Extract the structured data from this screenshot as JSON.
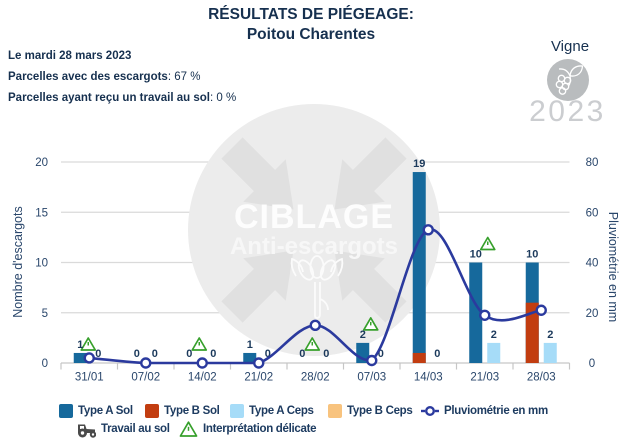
{
  "title": {
    "line1": "RÉSULTATS DE PIÉGEAGE:",
    "line2": "Poitou Charentes"
  },
  "info": {
    "date": "Le mardi 28 mars 2023",
    "line2_label": "Parcelles avec des escargots",
    "line2_value": ": 67 %",
    "line3_label": "Parcelles ayant reçu un travail au sol",
    "line3_value": ": 0 %"
  },
  "context": {
    "crop": "Vigne",
    "year": "2023"
  },
  "watermark": {
    "line1": "CIBLAGE",
    "line2": "Anti-escargots"
  },
  "chart_data": {
    "type": "bar+line",
    "categories": [
      "31/01",
      "07/02",
      "14/02",
      "21/02",
      "28/02",
      "07/03",
      "14/03",
      "21/03",
      "28/03"
    ],
    "bar_series": [
      {
        "name": "Type A Sol",
        "slot": "sol",
        "color": "#16699c",
        "values": [
          1,
          0,
          0,
          1,
          0,
          2,
          19,
          10,
          10
        ]
      },
      {
        "name": "Type B Sol",
        "slot": "sol",
        "color": "#c23d10",
        "values": [
          0,
          0,
          0,
          0,
          0,
          0,
          1,
          0,
          6
        ]
      },
      {
        "name": "Type A Ceps",
        "slot": "ceps",
        "color": "#a6dcf8",
        "values": [
          0,
          0,
          0,
          0,
          0,
          0,
          0,
          2,
          2
        ]
      },
      {
        "name": "Type B Ceps",
        "slot": "ceps",
        "color": "#f8c37e",
        "values": [
          0,
          0,
          0,
          0,
          0,
          0,
          0,
          0,
          0
        ]
      }
    ],
    "line_series": {
      "name": "Pluviométrie en mm",
      "color": "#2b3a9e",
      "values": [
        2,
        0,
        0,
        0,
        15,
        1,
        53,
        19,
        21
      ]
    },
    "value_labels": {
      "sol": [
        "1",
        "0",
        "0",
        "1",
        "0",
        "2",
        "19",
        "10",
        "10"
      ],
      "ceps": [
        "0",
        "0",
        "0",
        "0",
        "0",
        "0",
        "0",
        "2",
        "2"
      ]
    },
    "delicate_interpretation": [
      true,
      false,
      true,
      false,
      true,
      true,
      false,
      true,
      false
    ],
    "y_left": {
      "title": "Nombre d'escargots",
      "ticks": [
        0,
        5,
        10,
        15,
        20
      ],
      "max": 20
    },
    "y_right": {
      "title": "Pluviométrie en mm",
      "ticks": [
        0,
        20,
        40,
        60,
        80
      ],
      "max": 80
    }
  },
  "legend": {
    "items": [
      {
        "label": "Type A Sol",
        "swatch": "square",
        "color": "#16699c"
      },
      {
        "label": "Type B Sol",
        "swatch": "square",
        "color": "#c23d10"
      },
      {
        "label": "Type A Ceps",
        "swatch": "square",
        "color": "#a6dcf8"
      },
      {
        "label": "Type B Ceps",
        "swatch": "square",
        "color": "#f8c37e"
      },
      {
        "label": "Pluviométrie en mm",
        "swatch": "line-marker",
        "color": "#2b3a9e"
      }
    ],
    "row2": [
      {
        "label": "Travail au sol",
        "icon": "tractor"
      },
      {
        "label": "Interprétation délicate",
        "icon": "warning-triangle"
      }
    ]
  }
}
